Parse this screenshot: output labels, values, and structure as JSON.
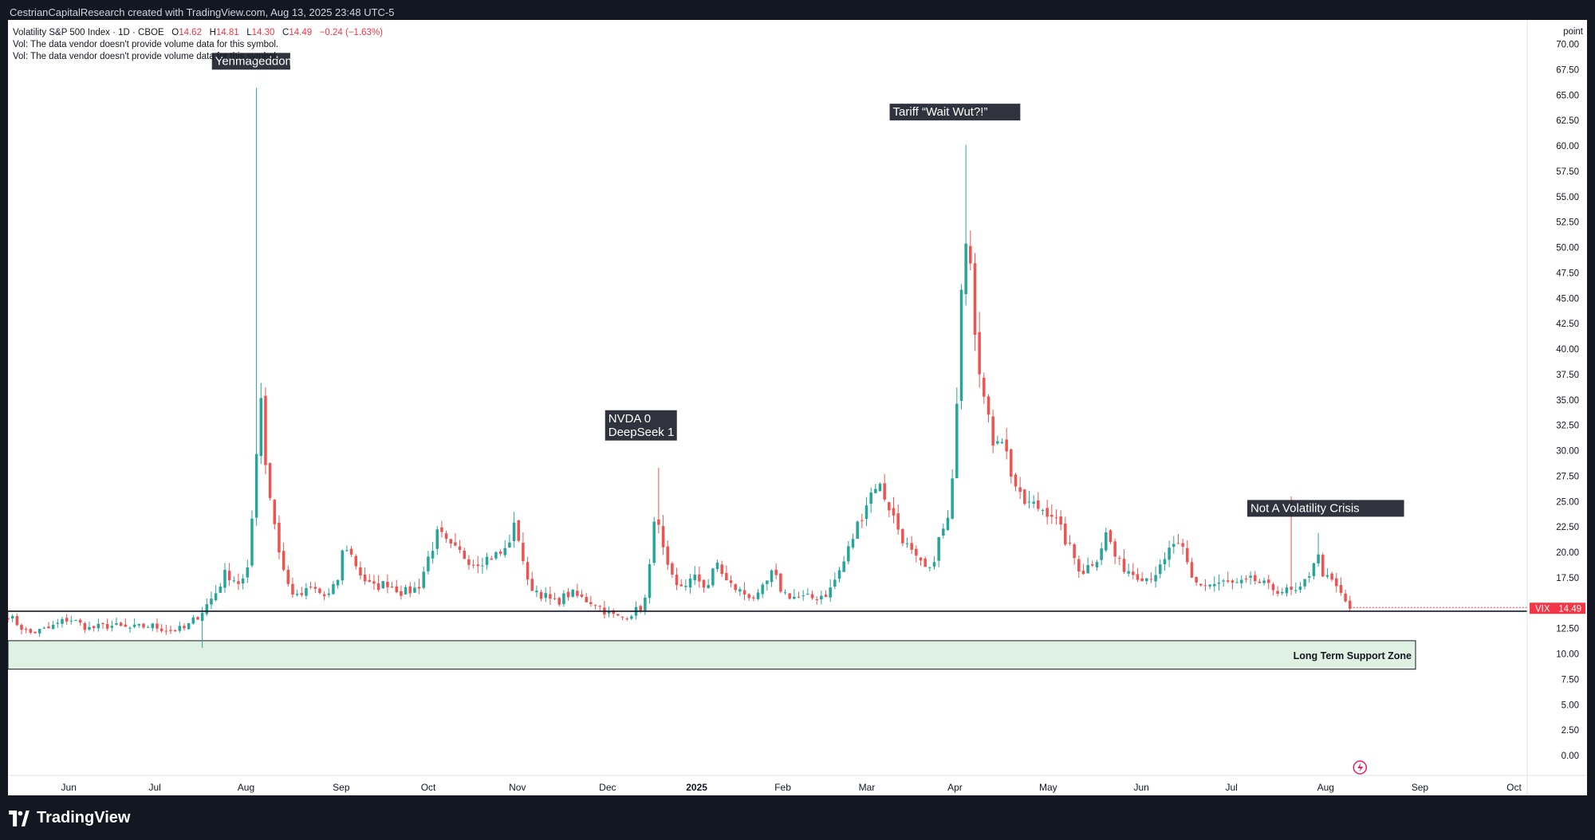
{
  "topbar": "CestrianCapitalResearch created with TradingView.com, Aug 13, 2025 23:48 UTC-5",
  "legend": {
    "symbol": "Volatility S&P 500 Index · 1D · CBOE",
    "o_label": "O",
    "o": "14.62",
    "h_label": "H",
    "h": "14.81",
    "l_label": "L",
    "l": "14.30",
    "c_label": "C",
    "c": "14.49",
    "change": "−0.24 (−1.63%)",
    "vol1": "Vol: The data vendor doesn't provide volume data for this symbol.",
    "vol2": "Vol: The data vendor doesn't provide volume data for this symbol."
  },
  "footer": {
    "brand": "TradingView",
    "logo_icon": "tradingview-logo-icon"
  },
  "colors": {
    "up": "#26a69a",
    "down": "#ef5350",
    "support_fill": "#dff1e2",
    "price_tag": "#f23645"
  },
  "chart_data": {
    "type": "candlestick",
    "symbol": "VIX",
    "ylabel": "point",
    "ylim": [
      0,
      70
    ],
    "y_ticks": [
      "0.00",
      "2.50",
      "5.00",
      "7.50",
      "10.00",
      "12.50",
      "15.00",
      "17.50",
      "20.00",
      "22.50",
      "25.00",
      "27.50",
      "30.00",
      "32.50",
      "35.00",
      "37.50",
      "40.00",
      "42.50",
      "45.00",
      "47.50",
      "50.00",
      "52.50",
      "55.00",
      "57.50",
      "60.00",
      "62.50",
      "65.00",
      "67.50",
      "70.00"
    ],
    "x_ticks": [
      {
        "label": "Jun",
        "t": 0.06
      },
      {
        "label": "Jul",
        "t": 0.145
      },
      {
        "label": "Aug",
        "t": 0.235
      },
      {
        "label": "Sep",
        "t": 0.329
      },
      {
        "label": "Oct",
        "t": 0.415
      },
      {
        "label": "Nov",
        "t": 0.503
      },
      {
        "label": "Dec",
        "t": 0.592
      },
      {
        "label": "2025",
        "t": 0.68
      },
      {
        "label": "Feb",
        "t": 0.765
      },
      {
        "label": "Mar",
        "t": 0.848
      },
      {
        "label": "Apr",
        "t": 0.935
      },
      {
        "label": "May",
        "t": 1.027
      },
      {
        "label": "Jun",
        "t": 1.119
      },
      {
        "label": "Jul",
        "t": 1.208
      },
      {
        "label": "Aug",
        "t": 1.301
      },
      {
        "label": "Sep",
        "t": 1.394
      },
      {
        "label": "Oct",
        "t": 1.487
      }
    ],
    "last_price": {
      "label": "VIX",
      "value": 14.49
    },
    "support_line": 14.2,
    "support_zone": {
      "low": 8.5,
      "high": 11.3,
      "label": "Long Term Support Zone"
    },
    "annotations": [
      {
        "text": "Yenmageddon",
        "x": 0.24,
        "y": 67.5
      },
      {
        "text": "NVDA 0\nDeepSeek 1",
        "x": 0.625,
        "y": 31.0
      },
      {
        "text": "Tariff “Wait Wut?!”",
        "x": 0.935,
        "y": 62.5
      },
      {
        "text": "Not A Volatility Crisis",
        "x": 1.301,
        "y": 23.5
      }
    ],
    "anchors": [
      [
        0.0,
        13.8
      ],
      [
        0.02,
        12.0
      ],
      [
        0.04,
        12.5
      ],
      [
        0.06,
        13.5
      ],
      [
        0.08,
        12.5
      ],
      [
        0.1,
        12.8
      ],
      [
        0.12,
        12.5
      ],
      [
        0.14,
        12.8
      ],
      [
        0.16,
        12.3
      ],
      [
        0.175,
        12.5
      ],
      [
        0.19,
        14.0
      ],
      [
        0.205,
        16.0
      ],
      [
        0.215,
        18.0
      ],
      [
        0.228,
        17.0
      ],
      [
        0.236,
        17.5
      ],
      [
        0.24,
        22.5
      ],
      [
        0.244,
        26.0
      ],
      [
        0.248,
        38.5
      ],
      [
        0.253,
        30.0
      ],
      [
        0.258,
        26.0
      ],
      [
        0.263,
        23.0
      ],
      [
        0.268,
        20.0
      ],
      [
        0.275,
        17.0
      ],
      [
        0.285,
        15.5
      ],
      [
        0.3,
        16.5
      ],
      [
        0.315,
        15.5
      ],
      [
        0.325,
        17.0
      ],
      [
        0.332,
        21.0
      ],
      [
        0.34,
        19.5
      ],
      [
        0.35,
        17.5
      ],
      [
        0.36,
        16.5
      ],
      [
        0.375,
        17.0
      ],
      [
        0.39,
        16.0
      ],
      [
        0.405,
        16.5
      ],
      [
        0.415,
        19.5
      ],
      [
        0.425,
        22.0
      ],
      [
        0.435,
        20.5
      ],
      [
        0.445,
        20.0
      ],
      [
        0.46,
        19.0
      ],
      [
        0.475,
        19.5
      ],
      [
        0.49,
        20.0
      ],
      [
        0.5,
        22.5
      ],
      [
        0.506,
        21.0
      ],
      [
        0.512,
        17.0
      ],
      [
        0.525,
        16.0
      ],
      [
        0.54,
        15.0
      ],
      [
        0.555,
        16.0
      ],
      [
        0.565,
        15.5
      ],
      [
        0.58,
        15.0
      ],
      [
        0.592,
        14.0
      ],
      [
        0.605,
        13.5
      ],
      [
        0.615,
        14.0
      ],
      [
        0.625,
        14.5
      ],
      [
        0.632,
        16.0
      ],
      [
        0.637,
        24.0
      ],
      [
        0.643,
        22.0
      ],
      [
        0.65,
        18.5
      ],
      [
        0.66,
        16.5
      ],
      [
        0.67,
        17.0
      ],
      [
        0.68,
        17.5
      ],
      [
        0.69,
        16.5
      ],
      [
        0.7,
        19.0
      ],
      [
        0.71,
        17.0
      ],
      [
        0.725,
        16.0
      ],
      [
        0.74,
        15.5
      ],
      [
        0.755,
        18.0
      ],
      [
        0.765,
        16.0
      ],
      [
        0.78,
        15.5
      ],
      [
        0.795,
        15.5
      ],
      [
        0.81,
        16.0
      ],
      [
        0.825,
        19.0
      ],
      [
        0.838,
        22.5
      ],
      [
        0.848,
        25.0
      ],
      [
        0.858,
        27.0
      ],
      [
        0.868,
        25.0
      ],
      [
        0.878,
        22.5
      ],
      [
        0.888,
        20.5
      ],
      [
        0.898,
        19.0
      ],
      [
        0.91,
        18.0
      ],
      [
        0.92,
        21.5
      ],
      [
        0.93,
        23.5
      ],
      [
        0.935,
        30.0
      ],
      [
        0.94,
        45.0
      ],
      [
        0.945,
        52.0
      ],
      [
        0.95,
        50.0
      ],
      [
        0.955,
        42.0
      ],
      [
        0.96,
        38.0
      ],
      [
        0.965,
        34.0
      ],
      [
        0.972,
        31.0
      ],
      [
        0.98,
        32.0
      ],
      [
        0.99,
        28.0
      ],
      [
        1.0,
        25.0
      ],
      [
        1.015,
        24.5
      ],
      [
        1.03,
        24.0
      ],
      [
        1.045,
        21.0
      ],
      [
        1.06,
        18.0
      ],
      [
        1.075,
        19.5
      ],
      [
        1.085,
        22.0
      ],
      [
        1.095,
        19.0
      ],
      [
        1.11,
        18.0
      ],
      [
        1.125,
        17.5
      ],
      [
        1.14,
        18.5
      ],
      [
        1.15,
        21.0
      ],
      [
        1.16,
        20.0
      ],
      [
        1.17,
        17.0
      ],
      [
        1.185,
        16.8
      ],
      [
        1.2,
        17.0
      ],
      [
        1.215,
        16.8
      ],
      [
        1.23,
        17.3
      ],
      [
        1.245,
        16.5
      ],
      [
        1.26,
        16.2
      ],
      [
        1.275,
        16.0
      ],
      [
        1.285,
        18.0
      ],
      [
        1.292,
        20.0
      ],
      [
        1.3,
        17.5
      ],
      [
        1.31,
        16.8
      ],
      [
        1.318,
        15.5
      ],
      [
        1.325,
        14.5
      ]
    ],
    "notable_highs": [
      [
        0.247,
        65.7
      ],
      [
        0.643,
        28.3
      ],
      [
        0.945,
        60.1
      ],
      [
        0.941,
        46.0
      ],
      [
        1.266,
        25.5
      ],
      [
        1.292,
        21.9
      ]
    ],
    "notable_lows": [
      [
        0.19,
        10.6
      ]
    ],
    "x_range": [
      0.0,
      1.5
    ]
  }
}
